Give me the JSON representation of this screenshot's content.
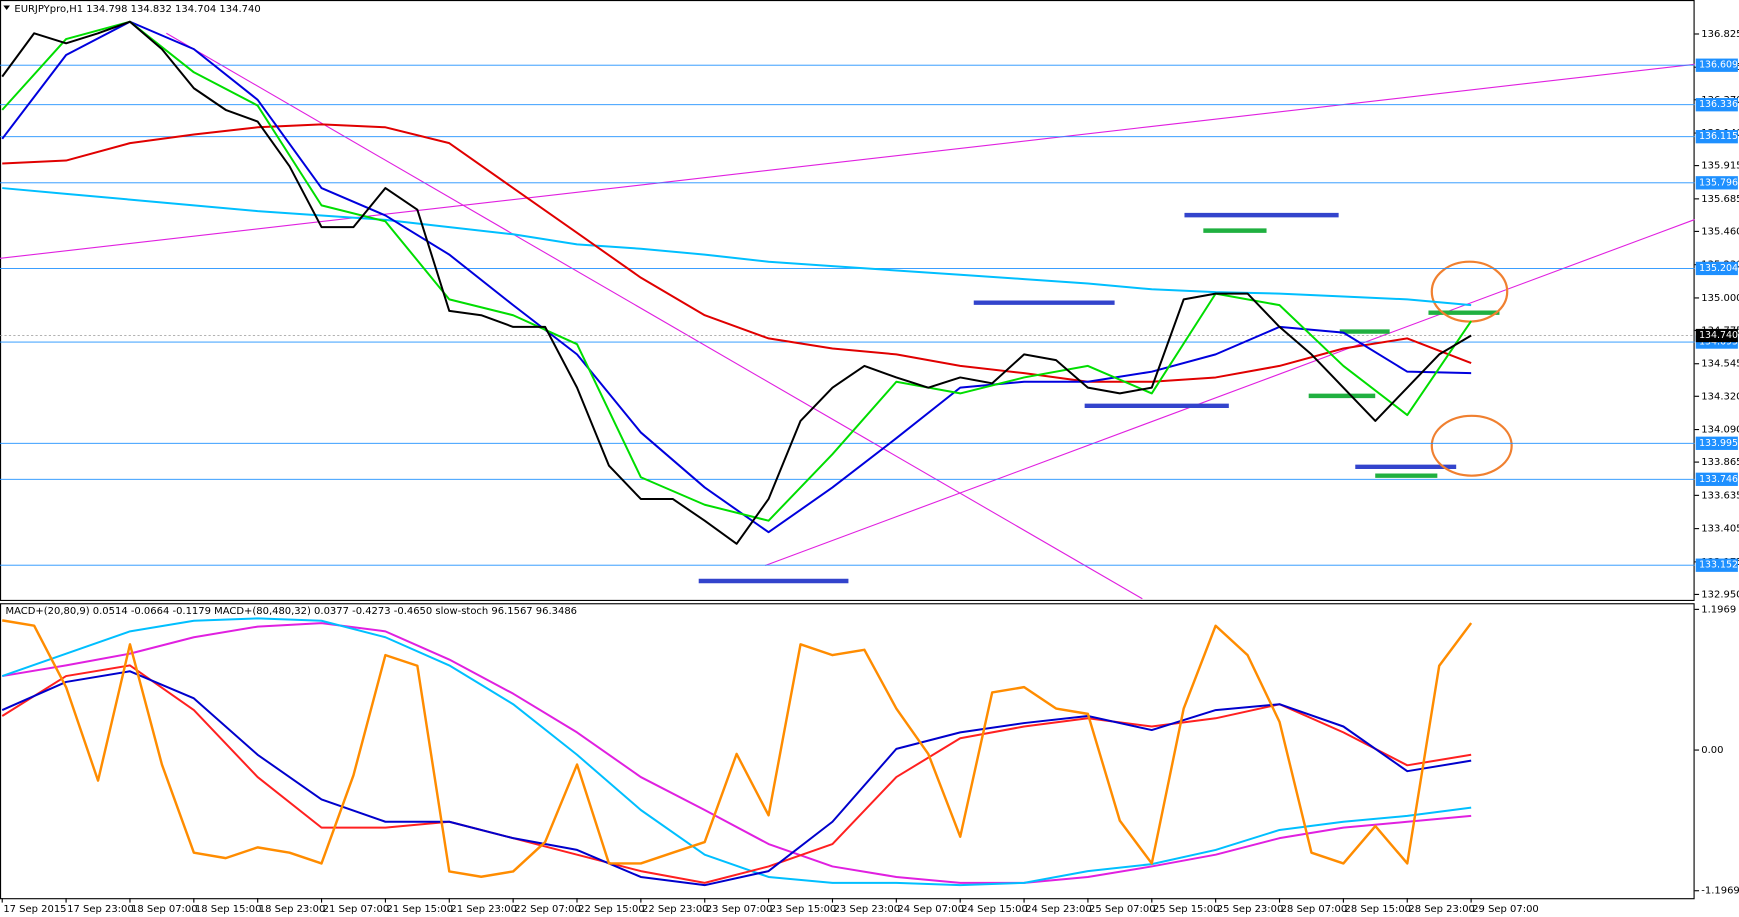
{
  "chart_data": [
    {
      "type": "line",
      "title": "EURJPYpro,H1  134.798 134.832 134.704 134.740",
      "xlim": [
        0,
        212
      ],
      "xticks": [
        {
          "value": 0,
          "label": "17 Sep 2015"
        },
        {
          "value": 8,
          "label": "17 Sep 23:00"
        },
        {
          "value": 16,
          "label": "18 Sep 07:00"
        },
        {
          "value": 24,
          "label": "18 Sep 15:00"
        },
        {
          "value": 32,
          "label": "18 Sep 23:00"
        },
        {
          "value": 40,
          "label": "21 Sep 07:00"
        },
        {
          "value": 48,
          "label": "21 Sep 15:00"
        },
        {
          "value": 56,
          "label": "21 Sep 23:00"
        },
        {
          "value": 64,
          "label": "22 Sep 07:00"
        },
        {
          "value": 72,
          "label": "22 Sep 15:00"
        },
        {
          "value": 80,
          "label": "22 Sep 23:00"
        },
        {
          "value": 88,
          "label": "23 Sep 07:00"
        },
        {
          "value": 96,
          "label": "23 Sep 15:00"
        },
        {
          "value": 104,
          "label": "23 Sep 23:00"
        },
        {
          "value": 112,
          "label": "24 Sep 07:00"
        },
        {
          "value": 120,
          "label": "24 Sep 15:00"
        },
        {
          "value": 128,
          "label": "24 Sep 23:00"
        },
        {
          "value": 136,
          "label": "25 Sep 07:00"
        },
        {
          "value": 144,
          "label": "25 Sep 15:00"
        },
        {
          "value": 152,
          "label": "25 Sep 23:00"
        },
        {
          "value": 160,
          "label": "28 Sep 07:00"
        },
        {
          "value": 168,
          "label": "28 Sep 15:00"
        },
        {
          "value": 176,
          "label": "28 Sep 23:00"
        },
        {
          "value": 184,
          "label": "29 Sep 07:00"
        }
      ],
      "ylim": [
        132.92,
        137.06
      ],
      "yticks": [
        136.825,
        136.595,
        {
          "value": 136.37,
          "label": "136.370"
        },
        {
          "value": 136.14,
          "label": "136.140"
        },
        135.915,
        135.685,
        {
          "value": 135.46,
          "label": "135.460"
        },
        {
          "value": 135.23,
          "label": "135.230"
        },
        {
          "value": 135,
          "label": "135.000"
        },
        134.775,
        134.545,
        {
          "value": 134.32,
          "label": "134.320"
        },
        {
          "value": 134.09,
          "label": "134.090"
        },
        133.865,
        133.635,
        133.405,
        133.175,
        {
          "value": 132.95,
          "label": "132.950"
        }
      ],
      "levels": [
        136.609,
        136.336,
        136.115,
        135.796,
        135.204,
        134.695,
        133.995,
        133.746,
        133.152
      ],
      "level_color": "#1e90ff",
      "last_price": {
        "value": 134.74,
        "label": "134.740"
      },
      "series": [
        {
          "color": "#00bfff",
          "x": [
            0,
            8,
            16,
            24,
            32,
            40,
            48,
            56,
            64,
            72,
            80,
            88,
            96,
            104,
            112,
            120,
            128,
            136,
            144,
            152,
            160,
            168,
            176,
            184
          ],
          "values": [
            135.76,
            135.72,
            135.68,
            135.64,
            135.6,
            135.57,
            135.54,
            135.49,
            135.44,
            135.37,
            135.34,
            135.3,
            135.25,
            135.22,
            135.19,
            135.16,
            135.13,
            135.1,
            135.06,
            135.04,
            135.03,
            135.01,
            134.99,
            134.95
          ]
        },
        {
          "color": "#e00000",
          "x": [
            0,
            8,
            16,
            24,
            32,
            40,
            48,
            56,
            64,
            72,
            80,
            88,
            96,
            104,
            112,
            120,
            128,
            136,
            144,
            152,
            160,
            168,
            176,
            184
          ],
          "values": [
            135.93,
            135.95,
            136.07,
            136.13,
            136.18,
            136.2,
            136.18,
            136.07,
            135.76,
            135.45,
            135.14,
            134.88,
            134.72,
            134.65,
            134.61,
            134.53,
            134.48,
            134.42,
            134.42,
            134.45,
            134.53,
            134.65,
            134.72,
            134.55
          ]
        },
        {
          "color": "#0000dd",
          "x": [
            0,
            8,
            16,
            24,
            32,
            40,
            48,
            56,
            64,
            72,
            80,
            88,
            96,
            104,
            112,
            120,
            128,
            136,
            144,
            152,
            160,
            168,
            176,
            184
          ],
          "values": [
            136.1,
            136.68,
            136.91,
            136.72,
            136.37,
            135.76,
            135.57,
            135.3,
            134.95,
            134.61,
            134.07,
            133.69,
            133.38,
            133.69,
            134.03,
            134.38,
            134.42,
            134.42,
            134.49,
            134.61,
            134.8,
            134.76,
            134.49,
            134.48
          ]
        },
        {
          "color": "#00dd00",
          "x": [
            0,
            8,
            16,
            24,
            32,
            40,
            48,
            56,
            64,
            72,
            80,
            88,
            96,
            104,
            112,
            120,
            128,
            136,
            144,
            152,
            160,
            168,
            176,
            184
          ],
          "values": [
            136.3,
            136.79,
            136.91,
            136.56,
            136.33,
            135.64,
            135.53,
            134.99,
            134.88,
            134.68,
            133.76,
            133.57,
            133.46,
            133.92,
            134.42,
            134.34,
            134.45,
            134.53,
            134.34,
            135.03,
            134.95,
            134.53,
            134.19,
            134.84
          ]
        },
        {
          "color": "#000000",
          "x": [
            0,
            4,
            8,
            12,
            16,
            20,
            24,
            28,
            32,
            36,
            40,
            44,
            48,
            52,
            56,
            60,
            64,
            68,
            72,
            76,
            80,
            84,
            88,
            92,
            96,
            100,
            104,
            108,
            112,
            116,
            120,
            124,
            128,
            132,
            136,
            140,
            144,
            148,
            152,
            156,
            160,
            164,
            168,
            172,
            176,
            180,
            184
          ],
          "values": [
            136.53,
            136.83,
            136.76,
            136.83,
            136.91,
            136.72,
            136.45,
            136.3,
            136.22,
            135.91,
            135.49,
            135.49,
            135.76,
            135.61,
            134.91,
            134.88,
            134.8,
            134.8,
            134.38,
            133.84,
            133.61,
            133.61,
            133.46,
            133.3,
            133.61,
            134.15,
            134.38,
            134.53,
            134.45,
            134.38,
            134.45,
            134.41,
            134.61,
            134.57,
            134.38,
            134.34,
            134.38,
            134.99,
            135.03,
            135.03,
            134.8,
            134.61,
            134.38,
            134.15,
            134.38,
            134.61,
            134.74
          ]
        }
      ]
    },
    {
      "type": "line",
      "title": "MACD+(20,80,9) 0.0514 -0.0664 -0.1179  MACD+(80,480,32) 0.0377 -0.4273 -0.4650  slow-stoch 96.1567 96.3486",
      "xlim": [
        0,
        212
      ],
      "ylim": [
        -1.26,
        1.24
      ],
      "yticks": [
        1.1969,
        {
          "value": 0,
          "label": "0.00"
        },
        -1.1969
      ],
      "y2lim": [
        -5,
        105
      ],
      "series": [
        {
          "color": "#e020e0",
          "x": [
            0,
            8,
            16,
            24,
            32,
            40,
            48,
            56,
            64,
            72,
            80,
            88,
            96,
            104,
            112,
            120,
            128,
            136,
            144,
            152,
            160,
            168,
            176,
            184
          ],
          "values": [
            0.63,
            0.72,
            0.82,
            0.96,
            1.05,
            1.08,
            1.01,
            0.77,
            0.48,
            0.15,
            -0.23,
            -0.51,
            -0.8,
            -0.99,
            -1.08,
            -1.13,
            -1.13,
            -1.08,
            -0.99,
            -0.89,
            -0.75,
            -0.66,
            -0.61,
            -0.56
          ]
        },
        {
          "color": "#00bfff",
          "x": [
            0,
            8,
            16,
            24,
            32,
            40,
            48,
            56,
            64,
            72,
            80,
            88,
            96,
            104,
            112,
            120,
            128,
            136,
            144,
            152,
            160,
            168,
            176,
            184
          ],
          "values": [
            0.63,
            0.82,
            1.01,
            1.1,
            1.12,
            1.1,
            0.96,
            0.72,
            0.39,
            -0.04,
            -0.51,
            -0.89,
            -1.08,
            -1.13,
            -1.13,
            -1.15,
            -1.13,
            -1.03,
            -0.97,
            -0.85,
            -0.68,
            -0.61,
            -0.56,
            -0.49
          ]
        },
        {
          "color": "#ff2020",
          "x": [
            0,
            8,
            16,
            24,
            32,
            40,
            48,
            56,
            64,
            72,
            80,
            88,
            96,
            104,
            112,
            120,
            128,
            136,
            144,
            152,
            160,
            168,
            176,
            184
          ],
          "values": [
            0.29,
            0.63,
            0.72,
            0.34,
            -0.23,
            -0.66,
            -0.66,
            -0.61,
            -0.75,
            -0.89,
            -1.03,
            -1.13,
            -0.99,
            -0.8,
            -0.23,
            0.1,
            0.2,
            0.27,
            0.2,
            0.27,
            0.39,
            0.15,
            -0.13,
            -0.04
          ]
        },
        {
          "color": "#0000cc",
          "x": [
            0,
            8,
            16,
            24,
            32,
            40,
            48,
            56,
            64,
            72,
            80,
            88,
            96,
            104,
            112,
            120,
            128,
            136,
            144,
            152,
            160,
            168,
            176,
            184
          ],
          "values": [
            0.34,
            0.58,
            0.67,
            0.44,
            -0.04,
            -0.42,
            -0.61,
            -0.61,
            -0.75,
            -0.85,
            -1.08,
            -1.15,
            -1.03,
            -0.61,
            0.01,
            0.15,
            0.23,
            0.29,
            0.17,
            0.34,
            0.39,
            0.2,
            -0.18,
            -0.09
          ]
        },
        {
          "color": "#ff8c00",
          "axis": "y2",
          "x": [
            0,
            4,
            8,
            12,
            16,
            20,
            24,
            28,
            32,
            36,
            40,
            44,
            48,
            52,
            56,
            60,
            64,
            68,
            72,
            76,
            80,
            84,
            88,
            92,
            96,
            100,
            104,
            108,
            112,
            116,
            120,
            124,
            128,
            132,
            136,
            140,
            144,
            148,
            152,
            156,
            160,
            164,
            168,
            172,
            176,
            180,
            184
          ],
          "values": [
            99,
            97,
            74,
            39,
            90,
            45,
            12,
            10,
            14,
            12,
            8,
            41,
            86,
            82,
            5,
            3,
            5,
            16,
            45,
            8,
            8,
            12,
            16,
            49,
            26,
            90,
            86,
            88,
            66,
            49,
            18,
            72,
            74,
            66,
            64,
            24,
            8,
            66,
            97,
            86,
            61,
            12,
            8,
            22,
            8,
            82,
            98
          ]
        }
      ]
    }
  ]
}
